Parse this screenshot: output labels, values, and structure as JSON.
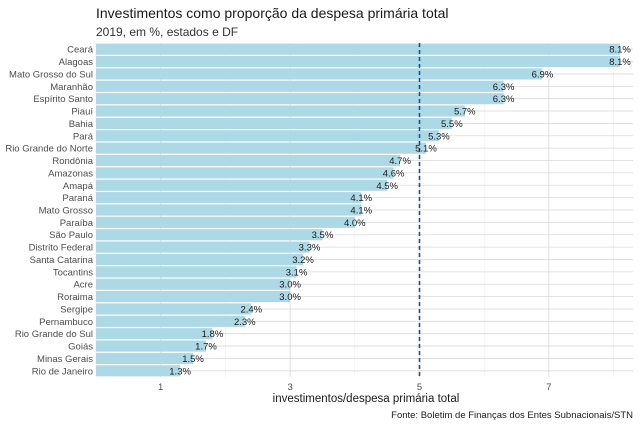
{
  "chart_data": {
    "type": "bar",
    "orientation": "horizontal",
    "title": "Investimentos como proporção da despesa primária total",
    "subtitle": "2019, em %, estados e DF",
    "xlabel": "investimentos/despesa primária total",
    "ylabel": "",
    "caption": "Fonte: Boletim de Finanças dos Entes Subnacionais/STN",
    "xlim": [
      0,
      8.3
    ],
    "xticks": [
      1,
      3,
      5,
      7
    ],
    "reference_line": {
      "value": 5,
      "style": "dashed",
      "color": "#1f4e8c"
    },
    "bar_color": "#add8e6",
    "grid": true,
    "categories": [
      "Ceará",
      "Alagoas",
      "Mato Grosso do Sul",
      "Maranhão",
      "Espírito Santo",
      "Piauí",
      "Bahia",
      "Pará",
      "Rio Grande do Norte",
      "Rondônia",
      "Amazonas",
      "Amapá",
      "Paraná",
      "Mato Grosso",
      "Paraíba",
      "São Paulo",
      "Distrito Federal",
      "Santa Catarina",
      "Tocantins",
      "Acre",
      "Roraima",
      "Sergipe",
      "Pernambuco",
      "Rio Grande do Sul",
      "Goiás",
      "Minas Gerais",
      "Rio de Janeiro"
    ],
    "values": [
      8.1,
      8.1,
      6.9,
      6.3,
      6.3,
      5.7,
      5.5,
      5.3,
      5.1,
      4.7,
      4.6,
      4.5,
      4.1,
      4.1,
      4.0,
      3.5,
      3.3,
      3.2,
      3.1,
      3.0,
      3.0,
      2.4,
      2.3,
      1.8,
      1.7,
      1.5,
      1.3
    ],
    "value_labels": [
      "8.1%",
      "8.1%",
      "6.9%",
      "6.3%",
      "6.3%",
      "5.7%",
      "5.5%",
      "5.3%",
      "5.1%",
      "4.7%",
      "4.6%",
      "4.5%",
      "4.1%",
      "4.1%",
      "4.0%",
      "3.5%",
      "3.3%",
      "3.2%",
      "3.1%",
      "3.0%",
      "3.0%",
      "2.4%",
      "2.3%",
      "1.8%",
      "1.7%",
      "1.5%",
      "1.3%"
    ]
  }
}
